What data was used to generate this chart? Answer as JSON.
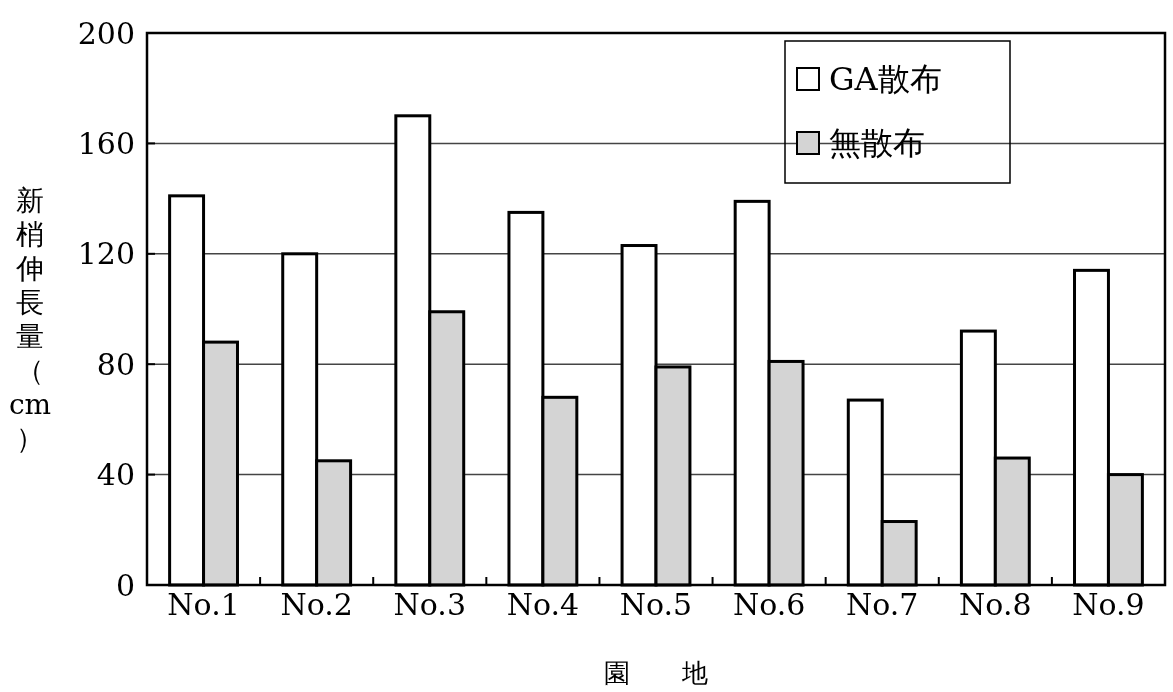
{
  "chart_data": {
    "type": "bar",
    "xlabel": "園　　地",
    "ylabel": "新梢伸長量（cm）",
    "categories": [
      "No.1",
      "No.2",
      "No.3",
      "No.4",
      "No.5",
      "No.6",
      "No.7",
      "No.8",
      "No.9"
    ],
    "series": [
      {
        "name": "GA散布",
        "color": "#ffffff",
        "values": [
          141,
          120,
          170,
          135,
          123,
          139,
          67,
          92,
          114
        ]
      },
      {
        "name": "無散布",
        "color": "#d4d4d4",
        "values": [
          88,
          45,
          99,
          68,
          79,
          81,
          23,
          46,
          40
        ]
      }
    ],
    "ylim": [
      0,
      200
    ],
    "yticks": [
      0,
      40,
      80,
      120,
      160,
      200
    ],
    "grid": "y",
    "legend": "top right"
  }
}
